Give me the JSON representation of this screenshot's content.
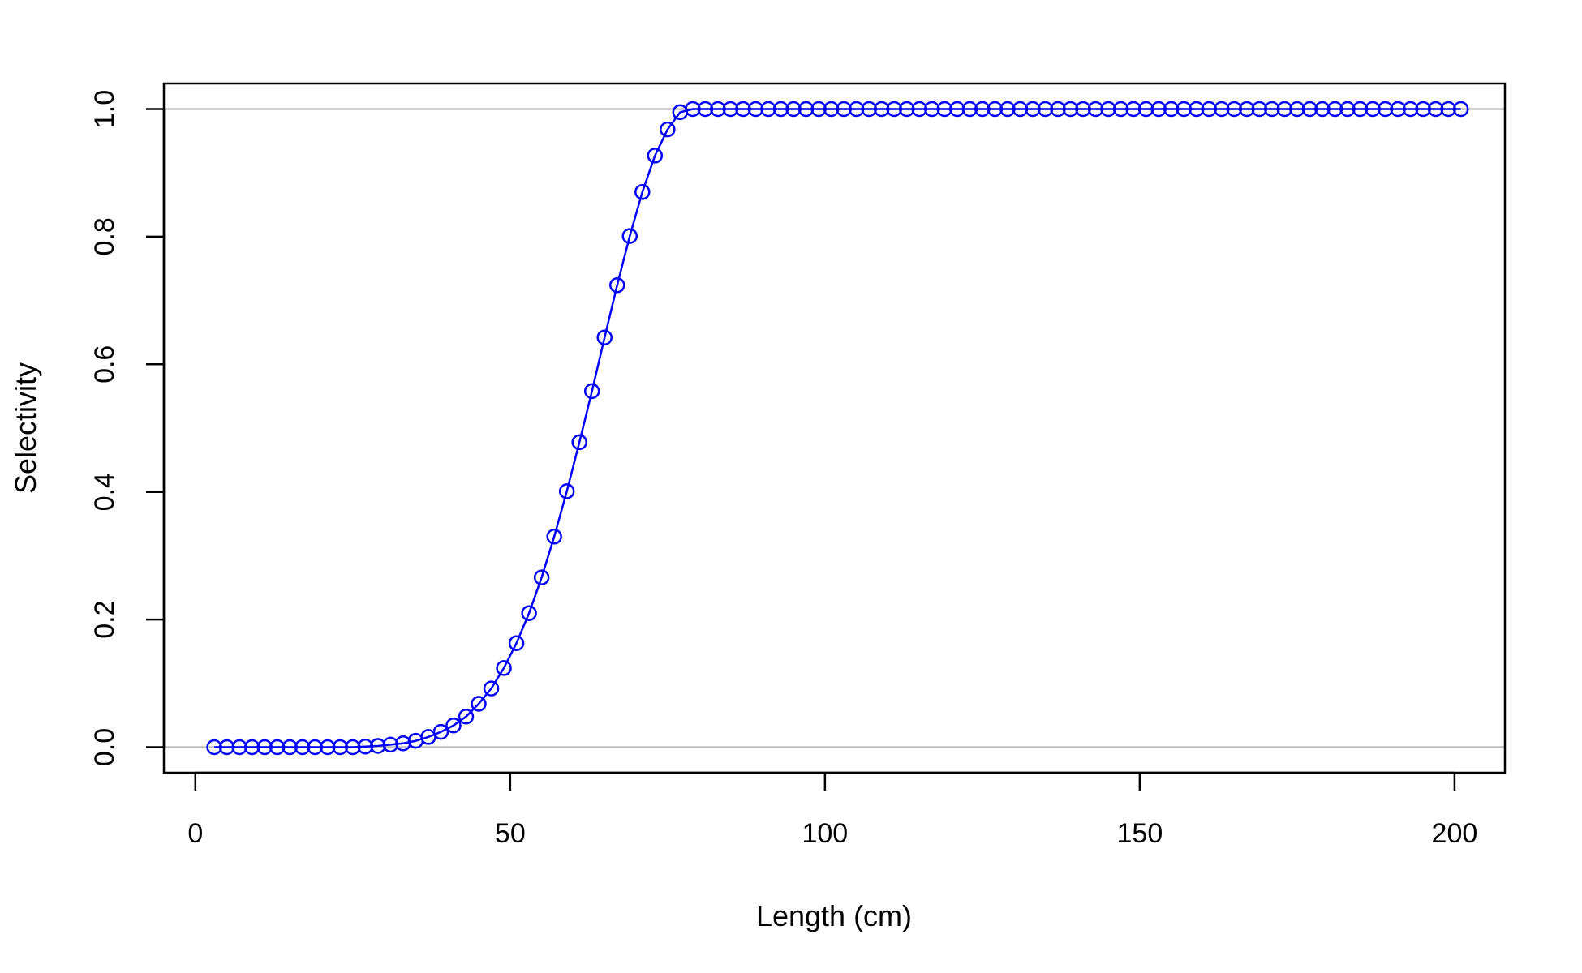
{
  "chart_data": {
    "type": "line",
    "title": "",
    "xlabel": "Length (cm)",
    "ylabel": "Selectivity",
    "xlim": [
      -5,
      208
    ],
    "ylim": [
      -0.04,
      1.04
    ],
    "x_ticks": [
      0,
      50,
      100,
      150,
      200
    ],
    "x_tick_labels": [
      "0",
      "50",
      "100",
      "150",
      "200"
    ],
    "y_ticks": [
      0.0,
      0.2,
      0.4,
      0.6,
      0.8,
      1.0
    ],
    "y_tick_labels": [
      "0.0",
      "0.2",
      "0.4",
      "0.6",
      "0.8",
      "1.0"
    ],
    "reference_lines_y": [
      0,
      1
    ],
    "reference_line_color": "#bebebe",
    "series_color": "#0000ff",
    "marker": "open-circle",
    "grid": false,
    "series": [
      {
        "x": [
          3,
          5,
          7,
          9,
          11,
          13,
          15,
          17,
          19,
          21,
          23,
          25,
          27,
          29,
          31,
          33,
          35,
          37,
          39,
          41,
          43,
          45,
          47,
          49,
          51,
          53,
          55,
          57,
          59,
          61,
          63,
          65,
          67,
          69,
          71,
          73,
          75,
          77,
          79,
          81,
          83,
          85,
          87,
          89,
          91,
          93,
          95,
          97,
          99,
          101,
          103,
          105,
          107,
          109,
          111,
          113,
          115,
          117,
          119,
          121,
          123,
          125,
          127,
          129,
          131,
          133,
          135,
          137,
          139,
          141,
          143,
          145,
          147,
          149,
          151,
          153,
          155,
          157,
          159,
          161,
          163,
          165,
          167,
          169,
          171,
          173,
          175,
          177,
          179,
          181,
          183,
          185,
          187,
          189,
          191,
          193,
          195,
          197,
          199,
          201
        ],
        "y": [
          0,
          0,
          0,
          0,
          0,
          0,
          0,
          0,
          0,
          0,
          0,
          0,
          0.001,
          0.002,
          0.004,
          0.006,
          0.01,
          0.016,
          0.024,
          0.034,
          0.048,
          0.068,
          0.092,
          0.124,
          0.163,
          0.21,
          0.266,
          0.33,
          0.401,
          0.478,
          0.558,
          0.642,
          0.724,
          0.801,
          0.87,
          0.927,
          0.968,
          0.995,
          1,
          1,
          1,
          1,
          1,
          1,
          1,
          1,
          1,
          1,
          1,
          1,
          1,
          1,
          1,
          1,
          1,
          1,
          1,
          1,
          1,
          1,
          1,
          1,
          1,
          1,
          1,
          1,
          1,
          1,
          1,
          1,
          1,
          1,
          1,
          1,
          1,
          1,
          1,
          1,
          1,
          1,
          1,
          1,
          1,
          1,
          1,
          1,
          1,
          1,
          1,
          1,
          1,
          1,
          1,
          1,
          1,
          1,
          1,
          1,
          1,
          1
        ]
      }
    ]
  }
}
